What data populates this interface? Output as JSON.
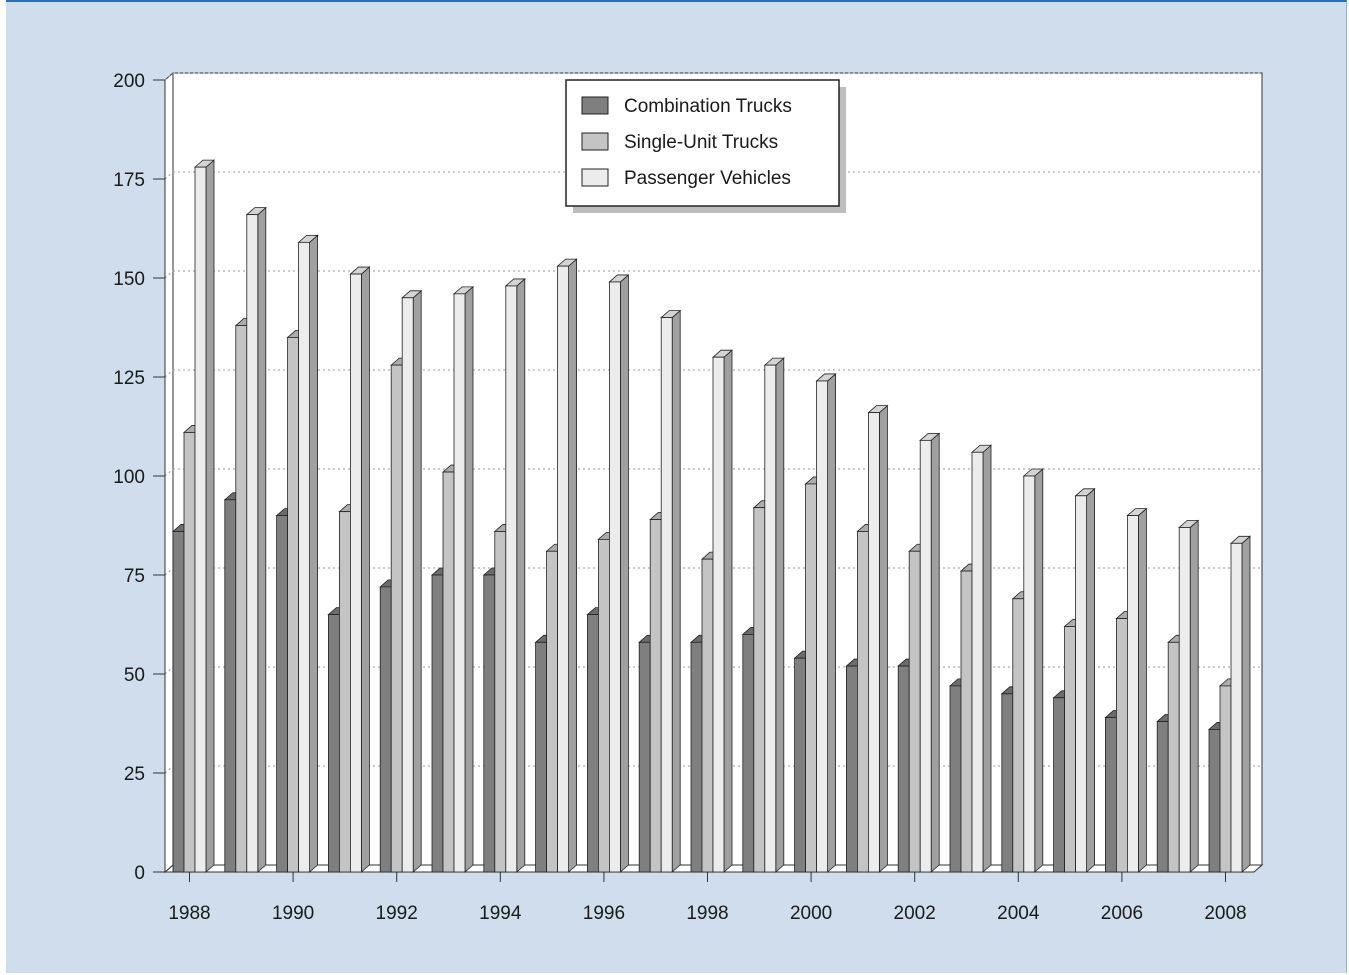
{
  "colors": {
    "panel_background": "#cfdded",
    "panel_border": "#2a6fb3",
    "combination_trucks": "#7f7f7f",
    "single_unit_trucks": "#c4c4c4",
    "passenger_vehicles": "#ececec"
  },
  "chart_data": {
    "type": "bar",
    "title": "",
    "xlabel": "",
    "ylabel": "",
    "ylim": [
      0,
      200
    ],
    "y_ticks": [
      "0",
      "25",
      "50",
      "75",
      "100",
      "125",
      "150",
      "175",
      "200"
    ],
    "x_tick_labels": [
      "1988",
      "1990",
      "1992",
      "1994",
      "1996",
      "1998",
      "2000",
      "2002",
      "2004",
      "2006",
      "2008"
    ],
    "categories": [
      "1988",
      "1989",
      "1990",
      "1991",
      "1992",
      "1993",
      "1994",
      "1995",
      "1996",
      "1997",
      "1998",
      "1999",
      "2000",
      "2001",
      "2002",
      "2003",
      "2004",
      "2005",
      "2006",
      "2007",
      "2008"
    ],
    "grid": true,
    "legend_position": "top-center",
    "series": [
      {
        "name": "Combination Trucks",
        "values": [
          86,
          94,
          90,
          65,
          72,
          75,
          75,
          58,
          65,
          58,
          58,
          60,
          54,
          52,
          52,
          47,
          45,
          44,
          39,
          38,
          36
        ]
      },
      {
        "name": "Single-Unit Trucks",
        "values": [
          111,
          138,
          135,
          91,
          128,
          101,
          86,
          81,
          84,
          89,
          79,
          92,
          98,
          86,
          81,
          76,
          69,
          62,
          64,
          58,
          47
        ]
      },
      {
        "name": "Passenger Vehicles",
        "values": [
          178,
          166,
          159,
          151,
          145,
          146,
          148,
          153,
          149,
          140,
          130,
          128,
          124,
          116,
          109,
          106,
          100,
          95,
          90,
          87,
          83
        ]
      }
    ]
  }
}
